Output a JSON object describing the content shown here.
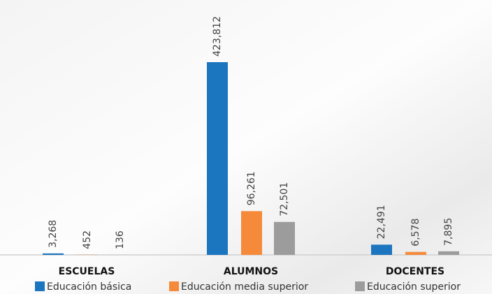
{
  "chart_data": {
    "type": "bar",
    "categories": [
      "ESCUELAS",
      "ALUMNOS",
      "DOCENTES"
    ],
    "series": [
      {
        "name": "Educación básica",
        "color": "#1b75bf",
        "values": [
          3268,
          423812,
          22491
        ],
        "value_labels": [
          "3,268",
          "423,812",
          "22,491"
        ]
      },
      {
        "name": "Educación media superior",
        "color": "#f58a3b",
        "values": [
          452,
          96261,
          6578
        ],
        "value_labels": [
          "452",
          "96,261",
          "6,578"
        ]
      },
      {
        "name": "Educación superior",
        "color": "#9c9c9c",
        "values": [
          136,
          72501,
          7895
        ],
        "value_labels": [
          "136",
          "72,501",
          "7,895"
        ]
      }
    ]
  }
}
